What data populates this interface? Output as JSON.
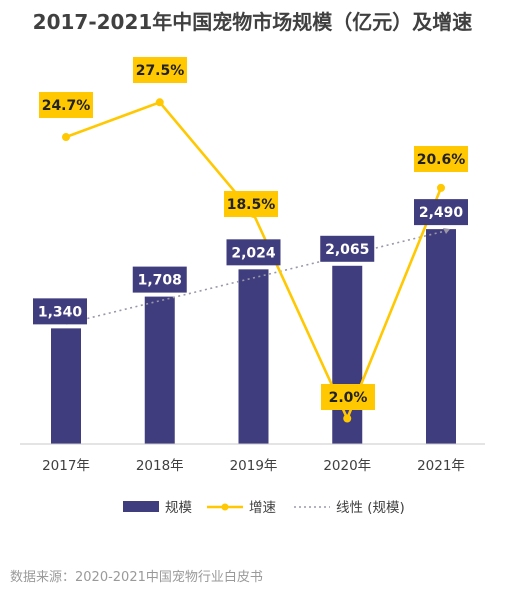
{
  "chart_data": {
    "type": "bar",
    "title": "2017-2021年中国宠物市场规模（亿元）及增速",
    "categories": [
      "2017年",
      "2018年",
      "2019年",
      "2020年",
      "2021年"
    ],
    "series": [
      {
        "name": "规模",
        "type": "bar",
        "values": [
          1340,
          1708,
          2024,
          2065,
          2490
        ],
        "labels": [
          "1,340",
          "1,708",
          "2,024",
          "2,065",
          "2,490"
        ],
        "color": "#403d7e"
      },
      {
        "name": "增速",
        "type": "line",
        "values": [
          24.7,
          27.5,
          18.5,
          2.0,
          20.6
        ],
        "labels": [
          "24.7%",
          "27.5%",
          "18.5%",
          "2.0%",
          "20.6%"
        ],
        "color": "#ffc800"
      },
      {
        "name": "线性 (规模)",
        "type": "trendline",
        "color": "#9a98a8"
      }
    ],
    "legend_position": "bottom",
    "grid": false
  },
  "source_note": "数据来源：2020-2021中国宠物行业白皮书"
}
